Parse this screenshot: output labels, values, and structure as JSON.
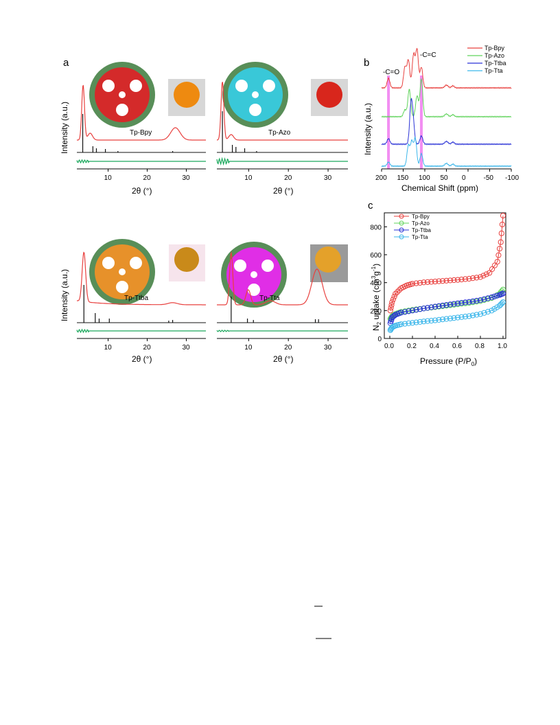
{
  "panel_labels": {
    "a": "a",
    "b": "b",
    "c": "c"
  },
  "colors": {
    "red": "#e8403e",
    "black": "#111111",
    "green": "#1aa85c",
    "b_red": "#e8403e",
    "b_green": "#5fd35a",
    "b_blue": "#2a32d6",
    "b_cyan": "#3bb6ea",
    "highlight": "#f07af0"
  },
  "chart_data": [
    {
      "id": "a1",
      "type": "line",
      "series_label": "Tp-Bpy",
      "xlabel": "2θ (°)",
      "ylabel": "Intensity (a.u.)",
      "xlim": [
        2,
        35
      ],
      "xticks": [
        "10",
        "20",
        "30"
      ],
      "experimental_peaks": [
        3.6,
        5.4,
        27.2
      ],
      "simulated_peaks": [
        3.5,
        6.1,
        7.0,
        9.3,
        12.5,
        26.5
      ],
      "inset_images": [
        "framework-model",
        "film-photo"
      ],
      "inset_tint": "#ee8a10"
    },
    {
      "id": "a2",
      "type": "line",
      "series_label": "Tp-Azo",
      "xlabel": "2θ (°)",
      "ylabel": "",
      "xlim": [
        2,
        35
      ],
      "xticks": [
        "10",
        "20",
        "30"
      ],
      "experimental_peaks": [
        3.4,
        5.6
      ],
      "simulated_peaks": [
        3.4,
        5.9,
        6.8,
        9.0,
        12.0
      ],
      "inset_images": [
        "framework-model",
        "film-photo"
      ],
      "inset_tint": "#d8261c"
    },
    {
      "id": "a3",
      "type": "line",
      "series_label": "Tp-Ttba",
      "xlabel": "2θ (°)",
      "ylabel": "Intensity (a.u.)",
      "xlim": [
        2,
        35
      ],
      "xticks": [
        "10",
        "20",
        "30"
      ],
      "experimental_peaks": [
        3.8,
        26.5
      ],
      "simulated_peaks": [
        3.8,
        6.7,
        7.7,
        10.3,
        25.5,
        26.5
      ],
      "inset_images": [
        "framework-model",
        "film-photo"
      ],
      "inset_tint": "#c98a1a"
    },
    {
      "id": "a4",
      "type": "line",
      "series_label": "Tp-Tta",
      "xlabel": "2θ (°)",
      "ylabel": "",
      "xlim": [
        2,
        35
      ],
      "xticks": [
        "10",
        "20",
        "30"
      ],
      "experimental_peaks": [
        5.6,
        9.9,
        15.5,
        27.2
      ],
      "simulated_peaks": [
        5.6,
        9.7,
        11.2,
        26.8,
        27.6
      ],
      "inset_images": [
        "framework-model",
        "film-photo"
      ],
      "inset_tint": "#e4a12a"
    },
    {
      "id": "b",
      "type": "line",
      "xlabel": "Chemical Shift (ppm)",
      "ylabel": "Intensity (a.u.)",
      "xlim": [
        200,
        -100
      ],
      "xticks": [
        "200",
        "150",
        "100",
        "50",
        "0",
        "-50",
        "-100"
      ],
      "annotations": [
        "-C=O",
        "-C=C"
      ],
      "highlight_ppm": [
        184,
        108
      ],
      "legend": [
        "Tp-Bpy",
        "Tp-Azo",
        "Tp-Ttba",
        "Tp-Tta"
      ],
      "series": [
        {
          "name": "Tp-Bpy",
          "peaks": [
            184,
            146,
            138,
            126,
            118,
            108
          ]
        },
        {
          "name": "Tp-Azo",
          "peaks": [
            146,
            136,
            118,
            108
          ]
        },
        {
          "name": "Tp-Ttba",
          "peaks": [
            184,
            132,
            127,
            108
          ]
        },
        {
          "name": "Tp-Tta",
          "peaks": [
            184,
            138,
            130,
            122,
            108
          ]
        }
      ]
    },
    {
      "id": "c",
      "type": "scatter",
      "xlabel": "Pressure (P/P",
      "xlabel_sub": "0",
      "xlabel_end": ")",
      "ylabel_pre": "N",
      "ylabel_sub": "2",
      "ylabel_mid": " uptake (cm",
      "ylabel_sup1": "3",
      "ylabel_g": "g",
      "ylabel_sup2": "-1",
      "ylabel_end": ")",
      "xlim": [
        0,
        1.0
      ],
      "ylim": [
        0,
        900
      ],
      "xticks": [
        "0.0",
        "0.2",
        "0.4",
        "0.6",
        "0.8",
        "1.0"
      ],
      "yticks": [
        "0",
        "200",
        "400",
        "600",
        "800"
      ],
      "legend": [
        "Tp-Bpy",
        "Tp-Azo",
        "Tp-Ttba",
        "Tp-Tta"
      ],
      "series": [
        {
          "name": "Tp-Bpy",
          "points": [
            [
              0.005,
              200
            ],
            [
              0.02,
              260
            ],
            [
              0.05,
              320
            ],
            [
              0.1,
              360
            ],
            [
              0.15,
              380
            ],
            [
              0.2,
              392
            ],
            [
              0.3,
              402
            ],
            [
              0.4,
              408
            ],
            [
              0.5,
              414
            ],
            [
              0.6,
              420
            ],
            [
              0.7,
              428
            ],
            [
              0.8,
              440
            ],
            [
              0.88,
              470
            ],
            [
              0.95,
              550
            ],
            [
              0.98,
              690
            ],
            [
              1.0,
              880
            ]
          ]
        },
        {
          "name": "Tp-Azo",
          "points": [
            [
              0.005,
              140
            ],
            [
              0.02,
              160
            ],
            [
              0.05,
              175
            ],
            [
              0.1,
              190
            ],
            [
              0.2,
              205
            ],
            [
              0.3,
              215
            ],
            [
              0.4,
              225
            ],
            [
              0.5,
              235
            ],
            [
              0.6,
              245
            ],
            [
              0.7,
              255
            ],
            [
              0.8,
              268
            ],
            [
              0.9,
              290
            ],
            [
              0.97,
              320
            ],
            [
              1.0,
              350
            ]
          ]
        },
        {
          "name": "Tp-Ttba",
          "points": [
            [
              0.005,
              110
            ],
            [
              0.02,
              150
            ],
            [
              0.05,
              170
            ],
            [
              0.1,
              185
            ],
            [
              0.2,
              200
            ],
            [
              0.3,
              215
            ],
            [
              0.4,
              228
            ],
            [
              0.5,
              240
            ],
            [
              0.6,
              252
            ],
            [
              0.7,
              262
            ],
            [
              0.8,
              275
            ],
            [
              0.9,
              295
            ],
            [
              0.97,
              312
            ],
            [
              1.0,
              322
            ]
          ]
        },
        {
          "name": "Tp-Tta",
          "points": [
            [
              0.005,
              60
            ],
            [
              0.02,
              80
            ],
            [
              0.05,
              92
            ],
            [
              0.1,
              102
            ],
            [
              0.2,
              112
            ],
            [
              0.3,
              122
            ],
            [
              0.4,
              130
            ],
            [
              0.5,
              140
            ],
            [
              0.6,
              150
            ],
            [
              0.7,
              160
            ],
            [
              0.8,
              175
            ],
            [
              0.9,
              200
            ],
            [
              0.97,
              235
            ],
            [
              1.0,
              260
            ]
          ]
        }
      ]
    }
  ]
}
